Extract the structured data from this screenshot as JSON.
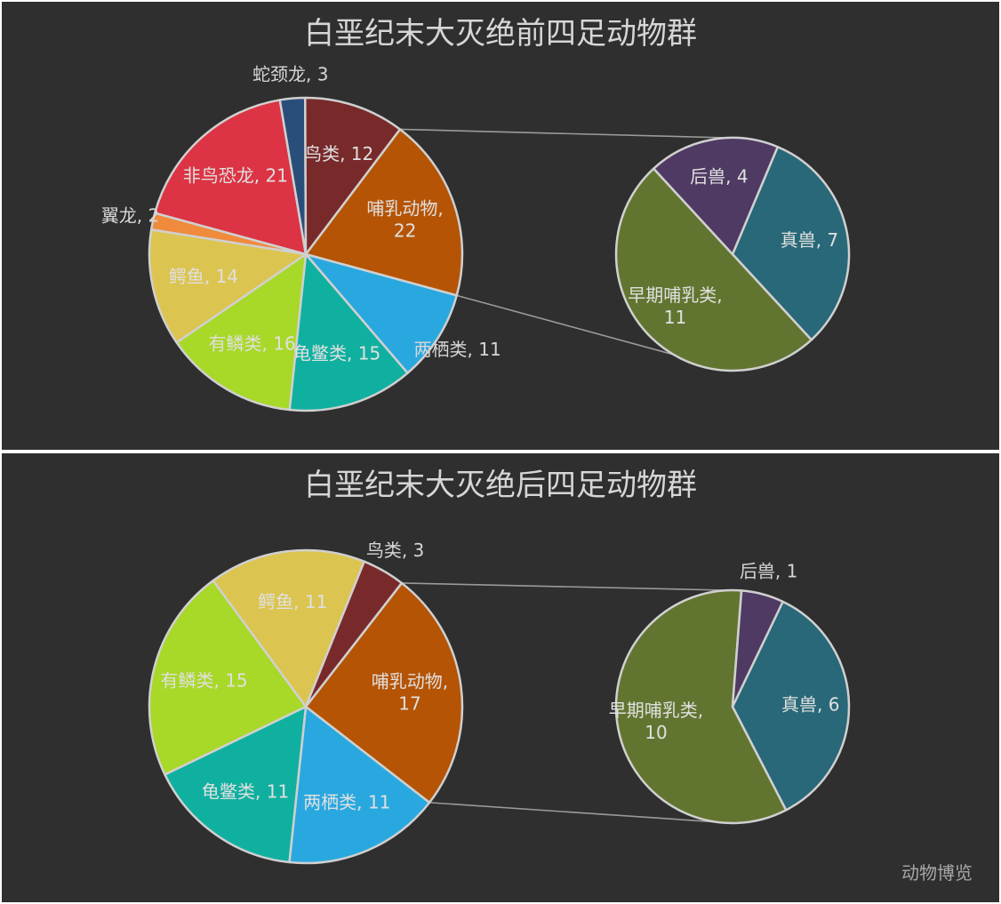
{
  "colors": {
    "background": "#2f2f2f",
    "divider": "#ffffff",
    "outline": "#d0d0d0",
    "connector": "#9a9a9a",
    "label_inside": "#e0e0e0",
    "label_outside": "#d6d6d6"
  },
  "watermark": "动物博览",
  "chart_data": [
    {
      "type": "pie",
      "subtype": "pie-of-pie",
      "title": "白垩纪末大灭绝前四足动物群",
      "main_pie": [
        {
          "label": "哺乳动物",
          "value": 22,
          "color": "#b55404",
          "label_position": "inside",
          "display_lines": [
            "哺乳动物,",
            "22"
          ]
        },
        {
          "label": "两栖类",
          "value": 11,
          "color": "#29a8e0",
          "label_position": "outside",
          "display_lines": [
            "两栖类, 11"
          ]
        },
        {
          "label": "龟鳖类",
          "value": 15,
          "color": "#10b0a0",
          "label_position": "inside",
          "display_lines": [
            "龟鳖类, 15"
          ]
        },
        {
          "label": "有鳞类",
          "value": 16,
          "color": "#a8d828",
          "label_position": "inside",
          "display_lines": [
            "有鳞类, 16"
          ]
        },
        {
          "label": "鳄鱼",
          "value": 14,
          "color": "#dcc450",
          "label_position": "inside",
          "display_lines": [
            "鳄鱼, 14"
          ]
        },
        {
          "label": "翼龙",
          "value": 2,
          "color": "#f08a3c",
          "label_position": "outside",
          "display_lines": [
            "翼龙, 2"
          ]
        },
        {
          "label": "非鸟恐龙",
          "value": 21,
          "color": "#dc3444",
          "label_position": "inside",
          "display_lines": [
            "非鸟恐龙, 21"
          ]
        },
        {
          "label": "蛇颈龙",
          "value": 3,
          "color": "#2a4e7a",
          "label_position": "outside",
          "display_lines": [
            "蛇颈龙, 3"
          ]
        },
        {
          "label": "鸟类",
          "value": 12,
          "color": "#782a2a",
          "label_position": "inside",
          "display_lines": [
            "鸟类, 12"
          ]
        }
      ],
      "exploded_category": "哺乳动物",
      "secondary_pie": [
        {
          "label": "真兽",
          "value": 7,
          "color": "#286878",
          "label_position": "inside",
          "display_lines": [
            "真兽, 7"
          ]
        },
        {
          "label": "早期哺乳类",
          "value": 11,
          "color": "#627530",
          "label_position": "inside",
          "display_lines": [
            "早期哺乳类,",
            "11"
          ]
        },
        {
          "label": "后兽",
          "value": 4,
          "color": "#4e3a62",
          "label_position": "inside",
          "display_lines": [
            "后兽, 4"
          ]
        }
      ]
    },
    {
      "type": "pie",
      "subtype": "pie-of-pie",
      "title": "白垩纪末大灭绝后四足动物群",
      "main_pie": [
        {
          "label": "哺乳动物",
          "value": 17,
          "color": "#b55404",
          "label_position": "inside",
          "display_lines": [
            "哺乳动物,",
            "17"
          ]
        },
        {
          "label": "两栖类",
          "value": 11,
          "color": "#29a8e0",
          "label_position": "inside",
          "display_lines": [
            "两栖类, 11"
          ]
        },
        {
          "label": "龟鳖类",
          "value": 11,
          "color": "#10b0a0",
          "label_position": "inside",
          "display_lines": [
            "龟鳖类, 11"
          ]
        },
        {
          "label": "有鳞类",
          "value": 15,
          "color": "#a8d828",
          "label_position": "inside",
          "display_lines": [
            "有鳞类, 15"
          ]
        },
        {
          "label": "鳄鱼",
          "value": 11,
          "color": "#dcc450",
          "label_position": "inside",
          "display_lines": [
            "鳄鱼, 11"
          ]
        },
        {
          "label": "鸟类",
          "value": 3,
          "color": "#782a2a",
          "label_position": "outside",
          "display_lines": [
            "鸟类, 3"
          ]
        }
      ],
      "exploded_category": "哺乳动物",
      "secondary_pie": [
        {
          "label": "真兽",
          "value": 6,
          "color": "#286878",
          "label_position": "inside",
          "display_lines": [
            "真兽, 6"
          ]
        },
        {
          "label": "早期哺乳类",
          "value": 10,
          "color": "#627530",
          "label_position": "inside",
          "display_lines": [
            "早期哺乳类,",
            "10"
          ]
        },
        {
          "label": "后兽",
          "value": 1,
          "color": "#4e3a62",
          "label_position": "outside",
          "display_lines": [
            "后兽, 1"
          ]
        }
      ]
    }
  ]
}
